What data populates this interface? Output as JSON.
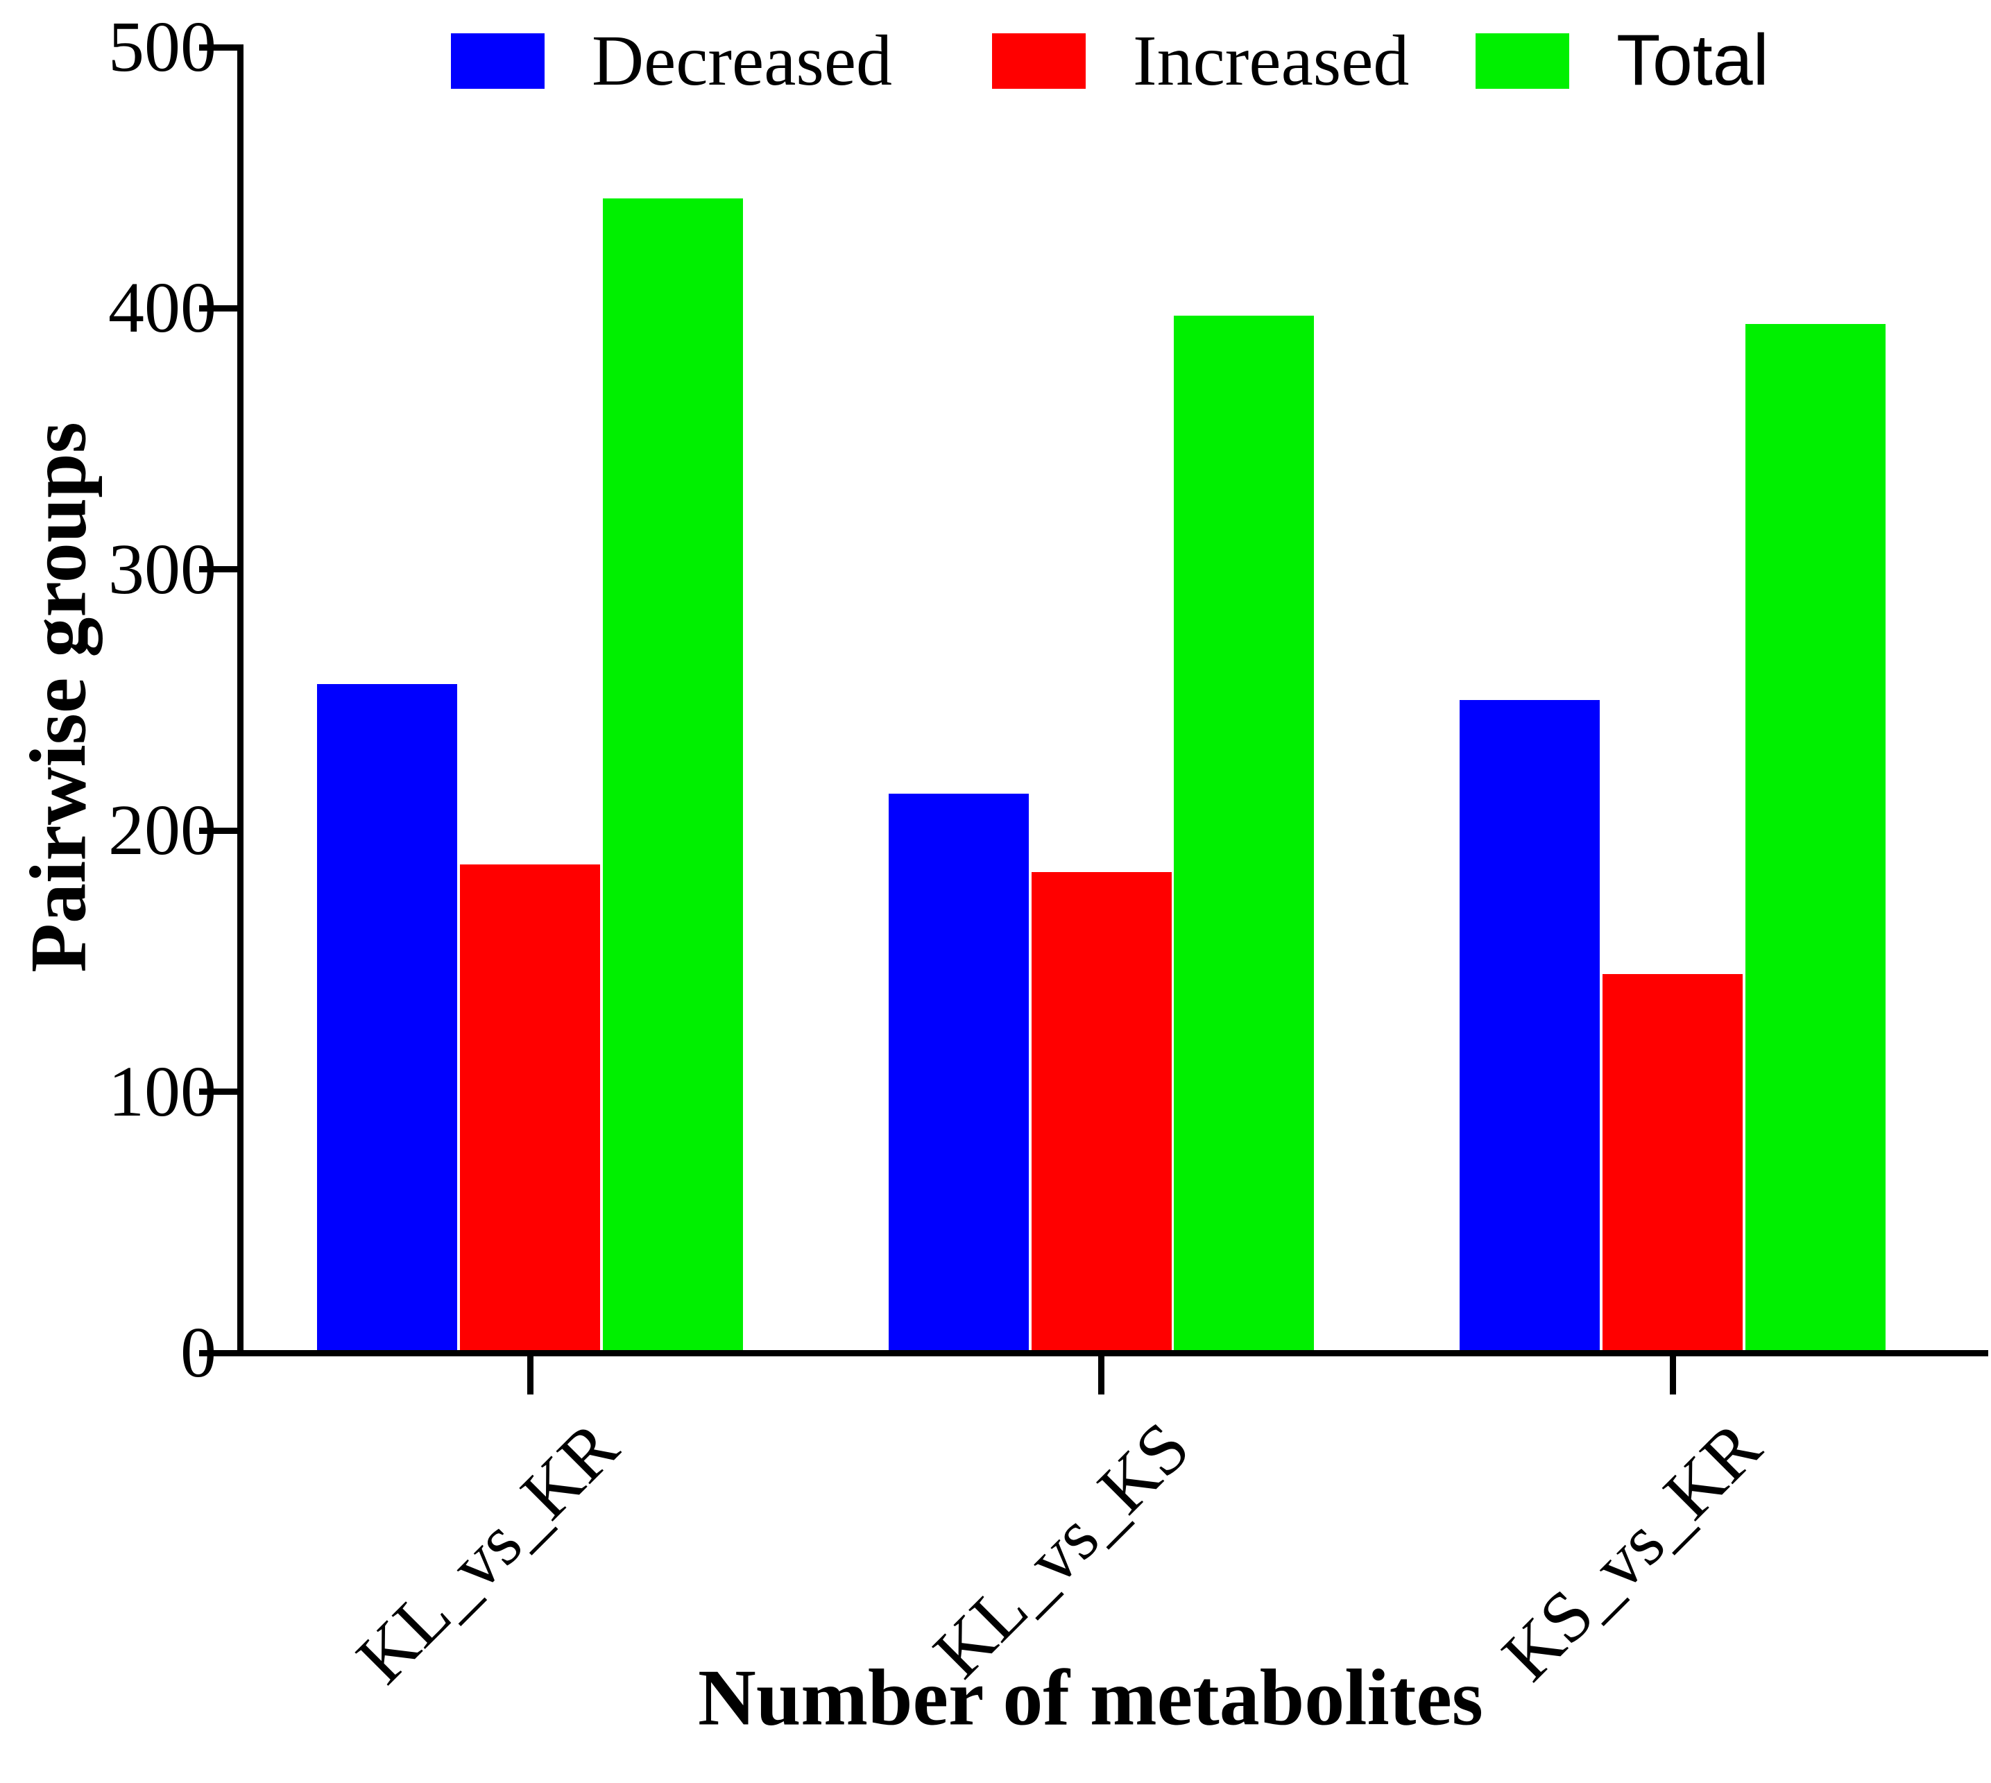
{
  "chart_data": {
    "type": "bar",
    "title": "",
    "xlabel": "Number of metabolites",
    "ylabel": "Pairwise groups",
    "categories": [
      "KL_vs_KR",
      "KL_vs_KS",
      "KS_vs_KR"
    ],
    "series": [
      {
        "name": "Decreased",
        "color": "#0000ff",
        "values": [
          255,
          213,
          249
        ]
      },
      {
        "name": "Increased",
        "color": "#ff0000",
        "values": [
          186,
          183,
          144
        ]
      },
      {
        "name": "Total",
        "color": "#00f000",
        "values": [
          441,
          396,
          393
        ]
      }
    ],
    "ylim": [
      0,
      500
    ],
    "yticks": [
      0,
      100,
      200,
      300,
      400,
      500
    ],
    "legend_position": "top",
    "grid": false,
    "axis_color": "#000000",
    "background_color": "#ffffff"
  }
}
